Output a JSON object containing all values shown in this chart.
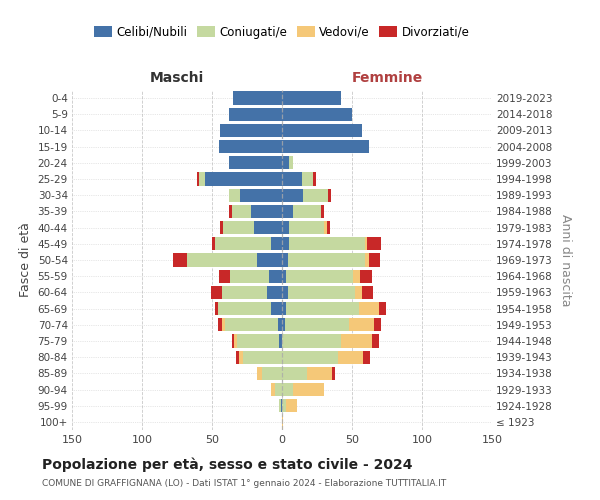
{
  "age_groups": [
    "100+",
    "95-99",
    "90-94",
    "85-89",
    "80-84",
    "75-79",
    "70-74",
    "65-69",
    "60-64",
    "55-59",
    "50-54",
    "45-49",
    "40-44",
    "35-39",
    "30-34",
    "25-29",
    "20-24",
    "15-19",
    "10-14",
    "5-9",
    "0-4"
  ],
  "birth_years": [
    "≤ 1923",
    "1924-1928",
    "1929-1933",
    "1934-1938",
    "1939-1943",
    "1944-1948",
    "1949-1953",
    "1954-1958",
    "1959-1963",
    "1964-1968",
    "1969-1973",
    "1974-1978",
    "1979-1983",
    "1984-1988",
    "1989-1993",
    "1994-1998",
    "1999-2003",
    "2004-2008",
    "2009-2013",
    "2014-2018",
    "2019-2023"
  ],
  "males": {
    "celibi": [
      0,
      1,
      0,
      0,
      0,
      2,
      3,
      8,
      11,
      9,
      18,
      8,
      20,
      22,
      30,
      55,
      38,
      45,
      44,
      38,
      35
    ],
    "coniugati": [
      0,
      1,
      5,
      14,
      28,
      30,
      38,
      38,
      32,
      28,
      50,
      40,
      22,
      14,
      8,
      4,
      0,
      0,
      0,
      0,
      0
    ],
    "vedovi": [
      0,
      0,
      3,
      4,
      3,
      2,
      2,
      0,
      0,
      0,
      0,
      0,
      0,
      0,
      0,
      0,
      0,
      0,
      0,
      0,
      0
    ],
    "divorziati": [
      0,
      0,
      0,
      0,
      2,
      2,
      3,
      2,
      8,
      8,
      10,
      2,
      2,
      2,
      0,
      2,
      0,
      0,
      0,
      0,
      0
    ]
  },
  "females": {
    "nubili": [
      0,
      0,
      0,
      0,
      0,
      0,
      2,
      3,
      4,
      3,
      4,
      5,
      5,
      8,
      15,
      14,
      5,
      62,
      57,
      50,
      42
    ],
    "coniugate": [
      0,
      3,
      8,
      18,
      40,
      42,
      46,
      52,
      48,
      48,
      55,
      54,
      25,
      20,
      18,
      8,
      3,
      0,
      0,
      0,
      0
    ],
    "vedove": [
      1,
      8,
      22,
      18,
      18,
      22,
      18,
      14,
      5,
      5,
      3,
      2,
      2,
      0,
      0,
      0,
      0,
      0,
      0,
      0,
      0
    ],
    "divorziate": [
      0,
      0,
      0,
      2,
      5,
      5,
      5,
      5,
      8,
      8,
      8,
      10,
      2,
      2,
      2,
      2,
      0,
      0,
      0,
      0,
      0
    ]
  },
  "colors": {
    "celibi": "#4472a8",
    "coniugati": "#c5d9a0",
    "vedovi": "#f5c878",
    "divorziati": "#c82828"
  },
  "xlim": 150,
  "title": "Popolazione per età, sesso e stato civile - 2024",
  "subtitle": "COMUNE DI GRAFFIGNANA (LO) - Dati ISTAT 1° gennaio 2024 - Elaborazione TUTTITALIA.IT",
  "xlabel_left": "Maschi",
  "xlabel_right": "Femmine",
  "ylabel_left": "Fasce di età",
  "ylabel_right": "Anni di nascita",
  "legend_labels": [
    "Celibi/Nubili",
    "Coniugati/e",
    "Vedovi/e",
    "Divorziati/e"
  ],
  "background_color": "#ffffff",
  "grid_color": "#bbbbbb"
}
